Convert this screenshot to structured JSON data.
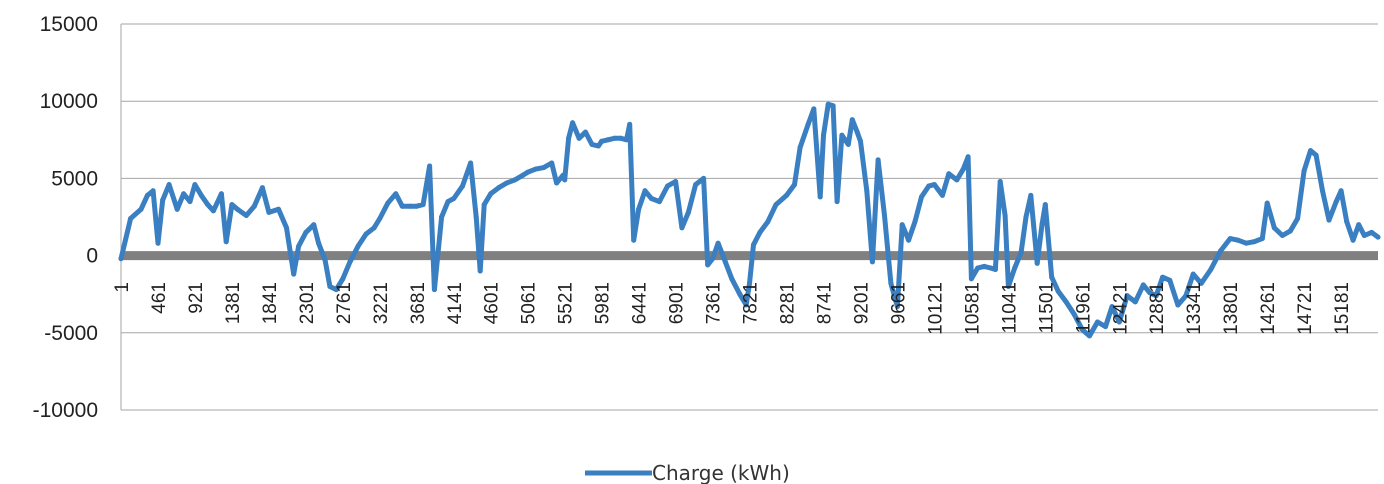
{
  "chart_data": {
    "type": "line",
    "title": "",
    "xlabel": "",
    "ylabel": "",
    "ylim": [
      -10000,
      15000
    ],
    "y_ticks": [
      15000,
      10000,
      5000,
      0,
      -5000,
      -10000
    ],
    "x_range": [
      1,
      15640
    ],
    "x_tick_labels": [
      "1",
      "461",
      "921",
      "1381",
      "1841",
      "2301",
      "2761",
      "3221",
      "3681",
      "4141",
      "4601",
      "5061",
      "5521",
      "5981",
      "6441",
      "6901",
      "7361",
      "7821",
      "8281",
      "8741",
      "9201",
      "9661",
      "10121",
      "10581",
      "11041",
      "11501",
      "11961",
      "12421",
      "12881",
      "13341",
      "13801",
      "14261",
      "14721",
      "15181"
    ],
    "grid": "horizontal",
    "zero_line_color": "#808080",
    "series_color": "#3a7fc1",
    "legend_position": "bottom",
    "series": [
      {
        "name": "Charge (kWh)",
        "points": [
          [
            1,
            -200
          ],
          [
            120,
            2400
          ],
          [
            250,
            3000
          ],
          [
            330,
            3900
          ],
          [
            400,
            4200
          ],
          [
            461,
            800
          ],
          [
            520,
            3600
          ],
          [
            600,
            4600
          ],
          [
            700,
            3000
          ],
          [
            780,
            4000
          ],
          [
            860,
            3500
          ],
          [
            921,
            4600
          ],
          [
            1000,
            3900
          ],
          [
            1080,
            3300
          ],
          [
            1150,
            2900
          ],
          [
            1250,
            4000
          ],
          [
            1310,
            900
          ],
          [
            1381,
            3300
          ],
          [
            1450,
            3000
          ],
          [
            1560,
            2600
          ],
          [
            1660,
            3200
          ],
          [
            1760,
            4400
          ],
          [
            1841,
            2800
          ],
          [
            1960,
            3000
          ],
          [
            2060,
            1800
          ],
          [
            2150,
            -1200
          ],
          [
            2210,
            600
          ],
          [
            2301,
            1500
          ],
          [
            2400,
            2000
          ],
          [
            2460,
            800
          ],
          [
            2540,
            -300
          ],
          [
            2600,
            -2000
          ],
          [
            2680,
            -2200
          ],
          [
            2761,
            -1500
          ],
          [
            2850,
            -400
          ],
          [
            2950,
            600
          ],
          [
            3050,
            1400
          ],
          [
            3150,
            1800
          ],
          [
            3221,
            2400
          ],
          [
            3320,
            3400
          ],
          [
            3420,
            4000
          ],
          [
            3500,
            3200
          ],
          [
            3600,
            3200
          ],
          [
            3681,
            3200
          ],
          [
            3760,
            3300
          ],
          [
            3840,
            5800
          ],
          [
            3900,
            -2200
          ],
          [
            3990,
            2500
          ],
          [
            4070,
            3500
          ],
          [
            4141,
            3700
          ],
          [
            4250,
            4500
          ],
          [
            4350,
            6000
          ],
          [
            4420,
            2500
          ],
          [
            4470,
            -1000
          ],
          [
            4520,
            3300
          ],
          [
            4601,
            4000
          ],
          [
            4700,
            4400
          ],
          [
            4800,
            4700
          ],
          [
            4900,
            4900
          ],
          [
            5000,
            5200
          ],
          [
            5061,
            5400
          ],
          [
            5160,
            5600
          ],
          [
            5260,
            5700
          ],
          [
            5360,
            6000
          ],
          [
            5420,
            4700
          ],
          [
            5500,
            5200
          ],
          [
            5521,
            4900
          ],
          [
            5570,
            7600
          ],
          [
            5620,
            8600
          ],
          [
            5700,
            7600
          ],
          [
            5780,
            8000
          ],
          [
            5860,
            7200
          ],
          [
            5940,
            7100
          ],
          [
            5981,
            7400
          ],
          [
            6060,
            7500
          ],
          [
            6140,
            7600
          ],
          [
            6220,
            7600
          ],
          [
            6290,
            7500
          ],
          [
            6330,
            8500
          ],
          [
            6380,
            1000
          ],
          [
            6441,
            3000
          ],
          [
            6520,
            4200
          ],
          [
            6600,
            3700
          ],
          [
            6700,
            3500
          ],
          [
            6800,
            4500
          ],
          [
            6901,
            4800
          ],
          [
            6980,
            1800
          ],
          [
            7060,
            2800
          ],
          [
            7150,
            4600
          ],
          [
            7250,
            5000
          ],
          [
            7300,
            -600
          ],
          [
            7361,
            -200
          ],
          [
            7430,
            800
          ],
          [
            7520,
            -400
          ],
          [
            7600,
            -1500
          ],
          [
            7700,
            -2500
          ],
          [
            7780,
            -3200
          ],
          [
            7821,
            -1800
          ],
          [
            7870,
            700
          ],
          [
            7950,
            1500
          ],
          [
            8050,
            2200
          ],
          [
            8150,
            3300
          ],
          [
            8281,
            3900
          ],
          [
            8380,
            4600
          ],
          [
            8450,
            7000
          ],
          [
            8550,
            8500
          ],
          [
            8620,
            9500
          ],
          [
            8700,
            3800
          ],
          [
            8741,
            7800
          ],
          [
            8800,
            9800
          ],
          [
            8860,
            9700
          ],
          [
            8910,
            3500
          ],
          [
            8970,
            7800
          ],
          [
            9050,
            7200
          ],
          [
            9100,
            8800
          ],
          [
            9160,
            8000
          ],
          [
            9201,
            7400
          ],
          [
            9280,
            4200
          ],
          [
            9350,
            -400
          ],
          [
            9420,
            6200
          ],
          [
            9500,
            2600
          ],
          [
            9580,
            -1800
          ],
          [
            9661,
            -3300
          ],
          [
            9720,
            2000
          ],
          [
            9800,
            1000
          ],
          [
            9880,
            2200
          ],
          [
            9960,
            3800
          ],
          [
            10050,
            4500
          ],
          [
            10121,
            4600
          ],
          [
            10220,
            3900
          ],
          [
            10300,
            5300
          ],
          [
            10400,
            4900
          ],
          [
            10480,
            5600
          ],
          [
            10540,
            6400
          ],
          [
            10581,
            -1500
          ],
          [
            10660,
            -800
          ],
          [
            10740,
            -700
          ],
          [
            10820,
            -800
          ],
          [
            10880,
            -900
          ],
          [
            10940,
            4800
          ],
          [
            11000,
            2600
          ],
          [
            11041,
            -2000
          ],
          [
            11120,
            -800
          ],
          [
            11200,
            200
          ],
          [
            11260,
            2500
          ],
          [
            11320,
            3900
          ],
          [
            11400,
            -500
          ],
          [
            11460,
            2000
          ],
          [
            11501,
            3300
          ],
          [
            11580,
            -1400
          ],
          [
            11660,
            -2300
          ],
          [
            11760,
            -3000
          ],
          [
            11860,
            -3800
          ],
          [
            11961,
            -4800
          ],
          [
            12050,
            -5200
          ],
          [
            12150,
            -4300
          ],
          [
            12250,
            -4600
          ],
          [
            12330,
            -3300
          ],
          [
            12421,
            -4300
          ],
          [
            12520,
            -2600
          ],
          [
            12620,
            -3000
          ],
          [
            12720,
            -1900
          ],
          [
            12800,
            -2400
          ],
          [
            12881,
            -2600
          ],
          [
            12960,
            -1400
          ],
          [
            13050,
            -1600
          ],
          [
            13150,
            -3200
          ],
          [
            13250,
            -2600
          ],
          [
            13341,
            -1200
          ],
          [
            13440,
            -1800
          ],
          [
            13560,
            -900
          ],
          [
            13680,
            300
          ],
          [
            13801,
            1100
          ],
          [
            13900,
            1000
          ],
          [
            14000,
            800
          ],
          [
            14100,
            900
          ],
          [
            14200,
            1100
          ],
          [
            14261,
            3400
          ],
          [
            14350,
            1800
          ],
          [
            14450,
            1300
          ],
          [
            14550,
            1600
          ],
          [
            14640,
            2400
          ],
          [
            14721,
            5500
          ],
          [
            14800,
            6800
          ],
          [
            14870,
            6500
          ],
          [
            14950,
            4200
          ],
          [
            15030,
            2300
          ],
          [
            15120,
            3500
          ],
          [
            15181,
            4200
          ],
          [
            15250,
            2200
          ],
          [
            15330,
            1000
          ],
          [
            15400,
            2000
          ],
          [
            15470,
            1300
          ],
          [
            15560,
            1500
          ],
          [
            15640,
            1200
          ]
        ]
      }
    ]
  }
}
